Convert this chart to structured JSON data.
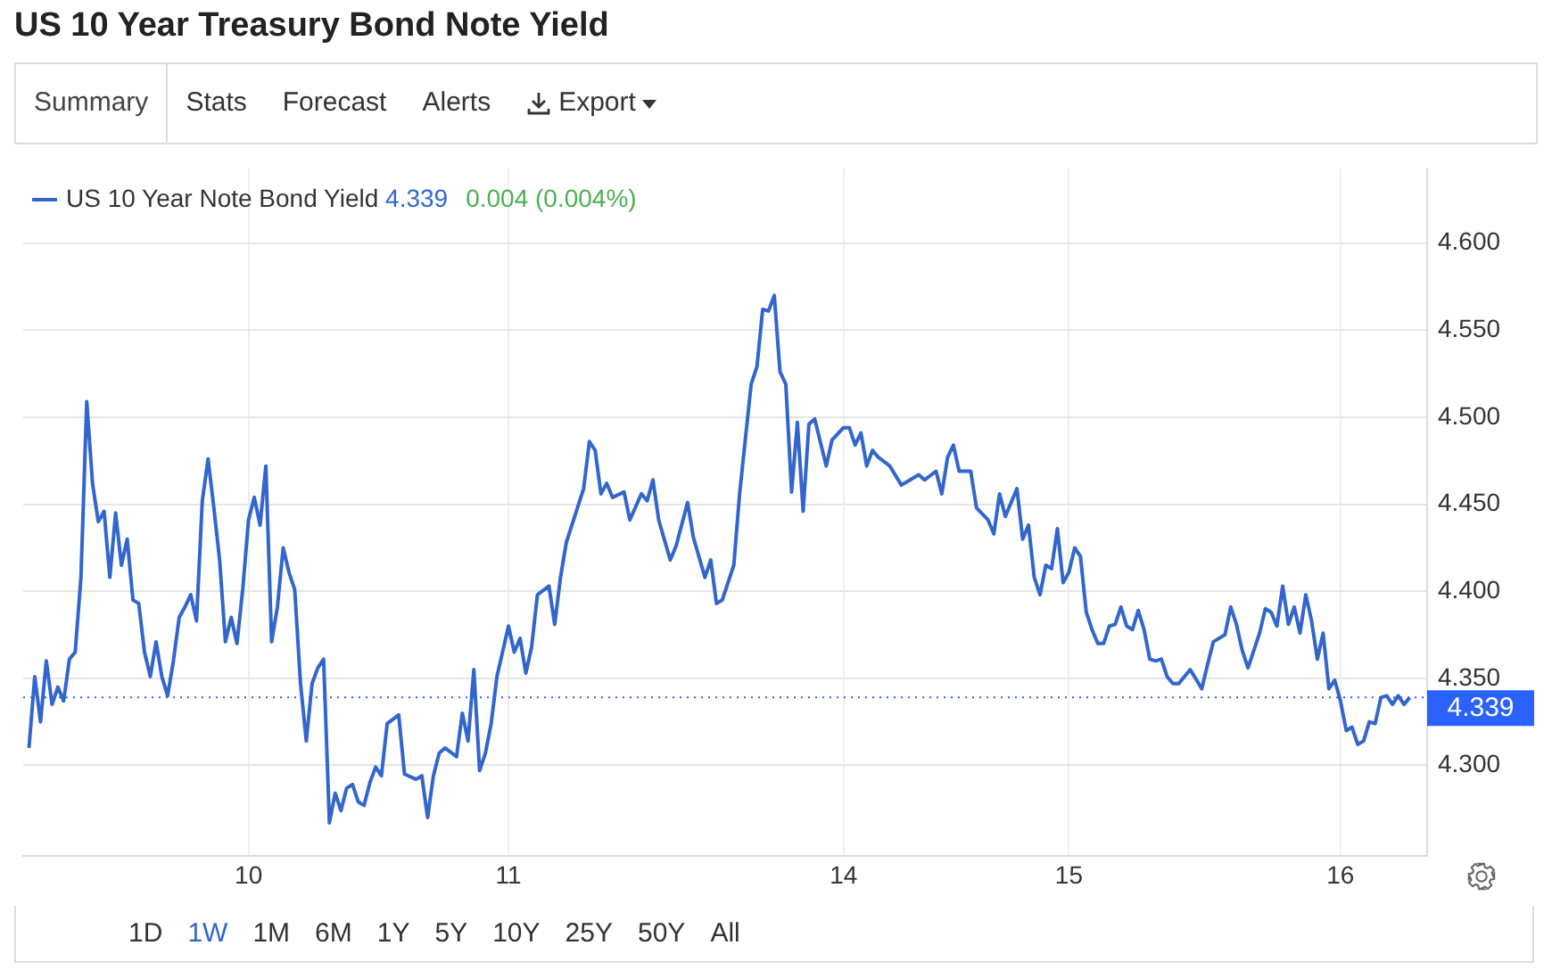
{
  "chart_data": {
    "type": "line",
    "title": "US 10 Year Treasury Bond Note Yield",
    "annotations": [
      "4.339",
      "0.004 (0.004%)",
      "Summary",
      "Stats",
      "Forecast",
      "Alerts",
      "Export",
      "1D",
      "1W",
      "1M",
      "6M",
      "1Y",
      "5Y",
      "10Y",
      "25Y",
      "50Y",
      "All"
    ],
    "categories": [
      null,
      null,
      null,
      null,
      null,
      null,
      null,
      null,
      null,
      null,
      null,
      null,
      null,
      null,
      null,
      null,
      null,
      null,
      null,
      null,
      null,
      null,
      null,
      null,
      null,
      null,
      null,
      null,
      null,
      null,
      null,
      null,
      null,
      null,
      null,
      null,
      null,
      null,
      null,
      "10",
      null,
      null,
      null,
      null,
      null,
      null,
      null,
      null,
      null,
      null,
      null,
      null,
      null,
      null,
      null,
      null,
      null,
      null,
      null,
      null,
      null,
      null,
      null,
      null,
      null,
      null,
      null,
      null,
      null,
      null,
      null,
      null,
      null,
      null,
      null,
      null,
      null,
      null,
      null,
      null,
      null,
      null,
      null,
      null,
      "11",
      null,
      null,
      null,
      null,
      null,
      null,
      null,
      null,
      null,
      null,
      null,
      null,
      null,
      null,
      null,
      null,
      null,
      null,
      null,
      null,
      null,
      null,
      null,
      null,
      null,
      null,
      null,
      null,
      null,
      null,
      null,
      null,
      null,
      null,
      null,
      null,
      null,
      null,
      null,
      null,
      null,
      null,
      null,
      null,
      null,
      null,
      null,
      null,
      null,
      null,
      null,
      null,
      null,
      null,
      null,
      null,
      null,
      "14",
      null,
      null,
      null,
      null,
      null,
      null,
      null,
      null,
      null,
      null,
      null,
      null,
      null,
      null,
      null,
      null,
      null,
      null,
      null,
      null,
      null,
      null,
      null,
      null,
      null,
      null,
      null,
      null,
      null,
      null,
      null,
      null,
      null,
      null,
      null,
      null,
      null,
      null,
      "15",
      null,
      null,
      null,
      null,
      null,
      null,
      null,
      null,
      null,
      null,
      null,
      null,
      null,
      null,
      null,
      null,
      null,
      null,
      null,
      null,
      null,
      null,
      null,
      null,
      null,
      null,
      null,
      null,
      null,
      null,
      null,
      null,
      null,
      null,
      null,
      null,
      null,
      null,
      null,
      null,
      null,
      null,
      null,
      null,
      null,
      null,
      "16",
      null,
      null,
      null,
      null,
      null,
      null,
      null,
      null,
      null,
      null,
      null,
      null,
      null,
      null,
      null
    ],
    "ylim": [
      4.248,
      4.643
    ],
    "yticks": [
      {
        "value": 4.3,
        "label": "4.300"
      },
      {
        "value": 4.35,
        "label": "4.350"
      },
      {
        "value": 4.4,
        "label": "4.400"
      },
      {
        "value": 4.45,
        "label": "4.450"
      },
      {
        "value": 4.5,
        "label": "4.500"
      },
      {
        "value": 4.55,
        "label": "4.550"
      },
      {
        "value": 4.6,
        "label": "4.600"
      }
    ],
    "grid": true,
    "legend": "top left",
    "ref_lines": [
      {
        "axis": "y",
        "value": 4.339,
        "label": "4.339",
        "color": "#2962ff",
        "line_style": "dotted"
      }
    ],
    "series": [
      {
        "name": "US 10 Year Note Bond Yield",
        "color": "#3366cc",
        "values": [
          null,
          4.31,
          4.351,
          4.325,
          4.36,
          4.335,
          4.345,
          4.337,
          4.361,
          4.365,
          4.408,
          4.509,
          4.462,
          4.44,
          4.446,
          4.408,
          4.445,
          4.415,
          4.43,
          4.395,
          4.393,
          4.365,
          4.351,
          4.371,
          4.351,
          4.34,
          4.36,
          4.385,
          4.391,
          4.398,
          4.383,
          4.452,
          4.476,
          4.448,
          4.418,
          4.371,
          4.385,
          4.37,
          4.401,
          4.441,
          4.454,
          4.438,
          4.472,
          4.371,
          4.391,
          4.425,
          4.411,
          4.401,
          4.347,
          4.314,
          4.347,
          4.356,
          4.361,
          4.267,
          4.284,
          4.274,
          4.287,
          4.289,
          4.279,
          4.277,
          4.29,
          4.299,
          4.294,
          4.324,
          null,
          4.329,
          4.295,
          null,
          4.292,
          4.294,
          4.27,
          4.294,
          4.307,
          4.31,
          null,
          4.305,
          4.33,
          4.314,
          4.355,
          4.297,
          4.307,
          4.324,
          4.351,
          null,
          4.38,
          4.365,
          4.373,
          4.353,
          4.368,
          4.398,
          null,
          4.403,
          4.381,
          4.408,
          4.428,
          null,
          null,
          4.459,
          4.486,
          4.481,
          4.456,
          4.462,
          4.454,
          null,
          4.457,
          4.441,
          null,
          4.456,
          4.452,
          4.464,
          4.441,
          null,
          4.418,
          4.426,
          null,
          4.451,
          4.431,
          null,
          4.408,
          4.418,
          4.393,
          4.395,
          null,
          4.415,
          4.456,
          null,
          4.519,
          4.529,
          4.562,
          4.561,
          4.57,
          4.526,
          4.519,
          4.457,
          4.497,
          4.446,
          4.496,
          4.499,
          null,
          4.472,
          4.487,
          null,
          4.494,
          4.494,
          4.484,
          4.491,
          4.472,
          4.481,
          4.477,
          null,
          4.472,
          null,
          4.461,
          null,
          null,
          4.467,
          4.464,
          null,
          4.469,
          4.456,
          4.477,
          4.484,
          4.469,
          null,
          4.469,
          4.448,
          null,
          4.441,
          4.433,
          4.456,
          4.443,
          null,
          4.459,
          4.43,
          4.438,
          4.408,
          4.398,
          4.415,
          4.413,
          4.436,
          4.405,
          4.411,
          4.425,
          4.42,
          4.388,
          4.378,
          4.37,
          4.37,
          4.38,
          4.381,
          4.391,
          4.38,
          4.378,
          4.389,
          4.378,
          4.361,
          4.36,
          4.361,
          4.351,
          4.347,
          4.347,
          null,
          4.355,
          null,
          4.344,
          4.358,
          4.371,
          null,
          4.375,
          4.391,
          4.381,
          4.366,
          4.356,
          null,
          4.376,
          4.39,
          4.388,
          4.38,
          4.403,
          4.381,
          4.391,
          4.376,
          4.398,
          4.383,
          4.361,
          4.376,
          4.344,
          4.349,
          4.337,
          4.32,
          4.322,
          4.312,
          4.314,
          4.325,
          4.324,
          4.339,
          4.34,
          4.335,
          4.34,
          4.335,
          4.339,
          null,
          null,
          null
        ]
      }
    ]
  }
}
